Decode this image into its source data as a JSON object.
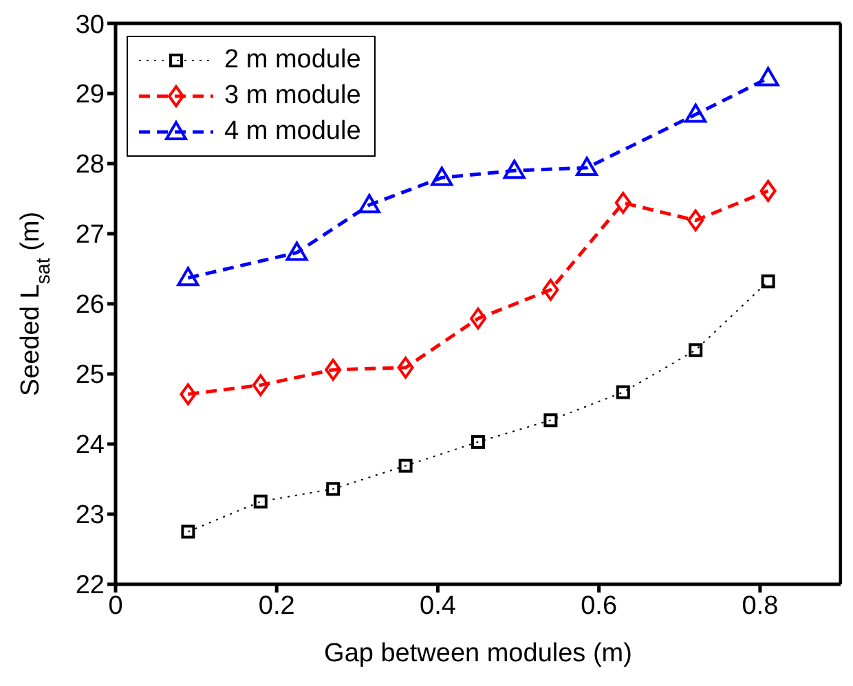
{
  "chart_data": {
    "type": "line",
    "xlabel": "Gap between modules (m)",
    "ylabel": "Seeded L$_{sat}$ (m)",
    "xlim": [
      0,
      0.9
    ],
    "xticks": [
      0,
      0.2,
      0.4,
      0.6,
      0.8
    ],
    "ylim": [
      22,
      30
    ],
    "yticks": [
      22,
      23,
      24,
      25,
      26,
      27,
      28,
      29,
      30
    ],
    "legend": "top left",
    "series": [
      {
        "name": "2 m module",
        "color": "#000000",
        "marker": "square",
        "line_style": "dotted",
        "x": [
          0.09,
          0.18,
          0.27,
          0.36,
          0.45,
          0.54,
          0.63,
          0.72,
          0.81
        ],
        "values": [
          22.75,
          23.18,
          23.36,
          23.69,
          24.03,
          24.34,
          24.74,
          25.34,
          26.32
        ]
      },
      {
        "name": "3 m module",
        "color": "#ff0000",
        "marker": "diamond",
        "line_style": "dashed",
        "x": [
          0.09,
          0.18,
          0.27,
          0.36,
          0.45,
          0.54,
          0.63,
          0.72,
          0.81
        ],
        "values": [
          24.71,
          24.84,
          25.06,
          25.09,
          25.79,
          26.2,
          27.44,
          27.19,
          27.61
        ]
      },
      {
        "name": "4 m module",
        "color": "#0000ff",
        "marker": "triangle",
        "line_style": "dashed",
        "x": [
          0.09,
          0.225,
          0.315,
          0.405,
          0.495,
          0.585,
          0.72,
          0.81
        ],
        "values": [
          26.37,
          26.73,
          27.41,
          27.8,
          27.9,
          27.94,
          28.7,
          29.22
        ]
      }
    ]
  }
}
